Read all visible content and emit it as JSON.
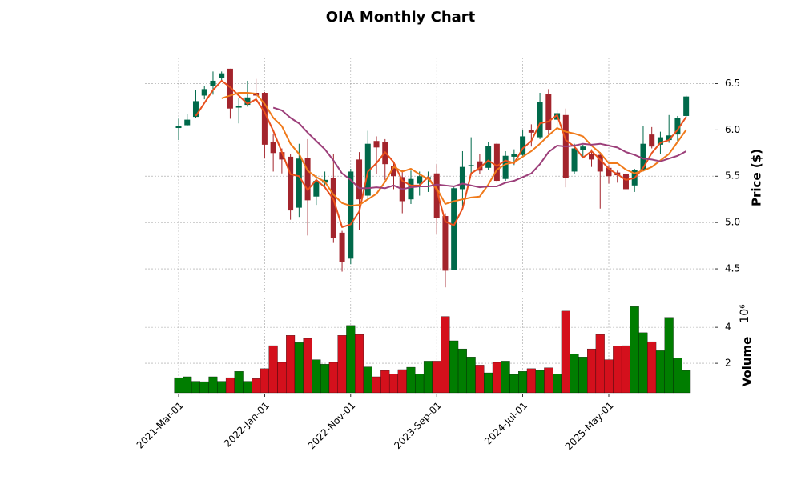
{
  "chart_data": {
    "type": "candlestick",
    "title": "OIA Monthly Chart",
    "x": [
      "2021-Mar-01",
      null,
      null,
      null,
      null,
      null,
      null,
      null,
      null,
      null,
      "2022-Jan-01",
      null,
      null,
      null,
      null,
      null,
      null,
      null,
      null,
      null,
      "2022-Nov-01",
      null,
      null,
      null,
      null,
      null,
      null,
      null,
      null,
      null,
      "2023-Sep-01",
      null,
      null,
      null,
      null,
      null,
      null,
      null,
      null,
      null,
      "2024-Jul-01",
      null,
      null,
      null,
      null,
      null,
      null,
      null,
      null,
      null,
      "2025-May-01",
      null,
      null,
      null,
      null,
      null,
      null,
      null,
      null,
      null
    ],
    "open": [
      6.02,
      6.05,
      6.14,
      6.37,
      6.47,
      6.56,
      6.66,
      6.24,
      6.27,
      6.4,
      6.4,
      5.87,
      5.76,
      5.71,
      5.16,
      5.7,
      5.28,
      5.43,
      5.48,
      4.89,
      4.61,
      5.68,
      5.29,
      5.88,
      5.87,
      5.61,
      5.49,
      5.25,
      5.42,
      5.47,
      5.53,
      5.07,
      4.49,
      5.36,
      5.61,
      5.66,
      5.59,
      5.85,
      5.47,
      5.71,
      5.73,
      6.0,
      5.92,
      6.39,
      6.11,
      6.16,
      5.55,
      5.78,
      5.74,
      5.73,
      5.59,
      5.54,
      5.52,
      5.4,
      5.57,
      5.95,
      5.84,
      5.89,
      5.95,
      6.15
    ],
    "high": [
      6.12,
      6.17,
      6.43,
      6.47,
      6.63,
      6.63,
      6.66,
      6.34,
      6.53,
      6.55,
      6.41,
      5.96,
      5.8,
      5.74,
      5.85,
      5.9,
      5.51,
      5.55,
      5.74,
      4.91,
      5.58,
      5.76,
      5.99,
      5.93,
      5.9,
      5.66,
      5.57,
      5.56,
      5.55,
      5.55,
      5.63,
      5.1,
      5.38,
      5.77,
      5.92,
      5.74,
      5.87,
      5.86,
      5.77,
      5.79,
      6.0,
      6.06,
      6.4,
      6.44,
      6.22,
      6.23,
      5.85,
      5.84,
      5.79,
      5.76,
      5.62,
      5.56,
      5.54,
      5.58,
      6.04,
      6.03,
      5.98,
      6.16,
      6.15,
      6.37
    ],
    "low": [
      5.89,
      6.04,
      6.13,
      6.33,
      6.38,
      6.52,
      6.12,
      6.07,
      6.25,
      6.3,
      5.69,
      5.55,
      5.53,
      5.03,
      5.06,
      4.86,
      5.19,
      5.4,
      4.78,
      4.47,
      4.55,
      4.92,
      5.25,
      5.52,
      5.46,
      5.36,
      5.1,
      5.2,
      5.29,
      5.33,
      4.87,
      4.3,
      4.49,
      5.18,
      5.52,
      5.52,
      5.57,
      5.43,
      5.45,
      5.62,
      5.72,
      5.82,
      5.9,
      5.95,
      6.0,
      5.38,
      5.52,
      5.7,
      5.6,
      5.15,
      5.42,
      5.43,
      5.35,
      5.33,
      5.55,
      5.8,
      5.74,
      5.86,
      5.88,
      6.14
    ],
    "close": [
      6.04,
      6.11,
      6.31,
      6.44,
      6.53,
      6.61,
      6.23,
      6.26,
      6.35,
      6.37,
      5.84,
      5.75,
      5.68,
      5.13,
      5.69,
      5.24,
      5.45,
      5.46,
      4.83,
      4.57,
      5.55,
      5.25,
      5.85,
      5.81,
      5.63,
      5.5,
      5.23,
      5.47,
      5.5,
      5.49,
      5.05,
      4.48,
      5.37,
      5.6,
      5.62,
      5.56,
      5.83,
      5.45,
      5.72,
      5.74,
      5.93,
      5.97,
      6.3,
      6.0,
      6.18,
      5.48,
      5.8,
      5.82,
      5.68,
      5.55,
      5.5,
      5.51,
      5.36,
      5.57,
      5.85,
      5.82,
      5.92,
      5.94,
      6.13,
      6.36
    ],
    "up_color": "#00694a",
    "down_color": "#a3242c",
    "ylim": [
      4.25,
      6.78
    ],
    "yticks": [
      4.5,
      {
        "value": 5,
        "label": "5.0"
      },
      5.5,
      {
        "value": 6,
        "label": "6.0"
      },
      6.5
    ],
    "y_label": "Price ($)",
    "grid": true,
    "moving_averages": [
      {
        "color": "#e8501c",
        "values": [
          null,
          null,
          6.15,
          6.29,
          6.43,
          6.53,
          6.46,
          6.37,
          6.28,
          6.33,
          6.19,
          5.99,
          5.76,
          5.52,
          5.5,
          5.35,
          5.46,
          5.38,
          5.25,
          4.95,
          4.98,
          5.12,
          5.55,
          5.64,
          5.76,
          5.65,
          5.45,
          5.4,
          5.4,
          5.49,
          5.35,
          5.01,
          4.97,
          5.15,
          5.53,
          5.59,
          5.67,
          5.61,
          5.67,
          5.64,
          5.8,
          5.88,
          6.07,
          6.09,
          6.16,
          5.89,
          5.82,
          5.7,
          5.77,
          5.68,
          5.58,
          5.52,
          5.46,
          5.48,
          5.59,
          5.75,
          5.86,
          5.89,
          6.0,
          6.14
        ]
      },
      {
        "color": "#f07a1a",
        "values": [
          null,
          null,
          null,
          null,
          null,
          6.34,
          6.37,
          6.4,
          6.4,
          6.39,
          6.28,
          6.13,
          6.04,
          5.85,
          5.74,
          5.56,
          5.49,
          5.44,
          5.3,
          5.21,
          5.18,
          5.19,
          5.25,
          5.31,
          5.44,
          5.6,
          5.55,
          5.58,
          5.52,
          5.47,
          5.37,
          5.2,
          5.23,
          5.25,
          5.27,
          5.28,
          5.41,
          5.57,
          5.63,
          5.65,
          5.71,
          5.77,
          5.85,
          5.94,
          6.02,
          5.98,
          5.96,
          5.93,
          5.83,
          5.75,
          5.64,
          5.64,
          5.57,
          5.53,
          5.56,
          5.6,
          5.67,
          5.74,
          5.87,
          6.0
        ]
      },
      {
        "color": "#9c3f7a",
        "values": [
          null,
          null,
          null,
          null,
          null,
          null,
          null,
          null,
          null,
          null,
          null,
          6.24,
          6.21,
          6.13,
          6.07,
          5.97,
          5.88,
          5.79,
          5.67,
          5.53,
          5.46,
          5.37,
          5.37,
          5.38,
          5.37,
          5.4,
          5.36,
          5.38,
          5.39,
          5.39,
          5.41,
          5.4,
          5.39,
          5.42,
          5.4,
          5.38,
          5.39,
          5.39,
          5.43,
          5.45,
          5.49,
          5.53,
          5.63,
          5.76,
          5.83,
          5.82,
          5.83,
          5.85,
          5.84,
          5.85,
          5.83,
          5.81,
          5.76,
          5.73,
          5.69,
          5.68,
          5.66,
          5.69,
          5.72,
          5.77
        ]
      }
    ],
    "volume": {
      "values": [
        1.2,
        1.25,
        1.0,
        0.98,
        1.25,
        1.0,
        1.2,
        1.55,
        1.0,
        1.15,
        1.7,
        2.98,
        2.05,
        3.55,
        3.15,
        3.38,
        2.2,
        1.95,
        2.05,
        3.55,
        4.1,
        3.6,
        1.8,
        1.25,
        1.6,
        1.42,
        1.65,
        1.78,
        1.42,
        2.12,
        2.12,
        4.6,
        3.25,
        2.8,
        2.35,
        1.9,
        1.47,
        2.05,
        2.12,
        1.38,
        1.55,
        1.7,
        1.6,
        1.75,
        1.4,
        4.9,
        2.5,
        2.35,
        2.8,
        3.6,
        2.2,
        2.95,
        2.98,
        5.15,
        3.7,
        3.2,
        2.7,
        4.55,
        2.3,
        1.6
      ],
      "up_color": "#007d00",
      "down_color": "#d4101c",
      "ylim": [
        0.36,
        5.65
      ],
      "yticks": [
        2,
        4
      ],
      "y_label": "Volume",
      "offset_label": "10⁶"
    }
  }
}
